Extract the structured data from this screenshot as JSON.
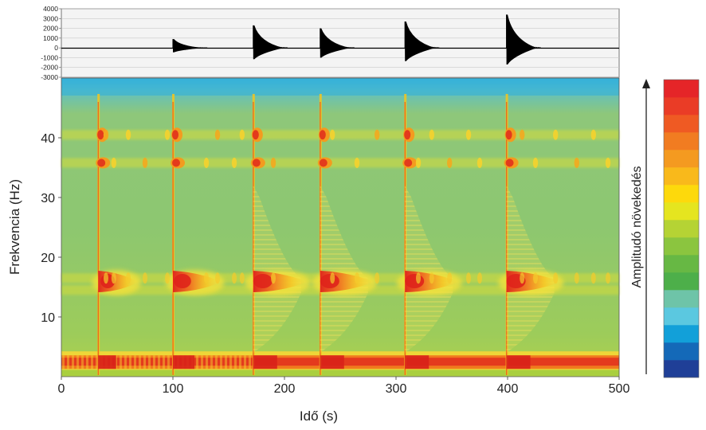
{
  "chart_data": [
    {
      "type": "line",
      "title": "",
      "xlabel": "",
      "ylabel": "",
      "xlim": [
        0,
        500
      ],
      "ylim": [
        -3000,
        4000
      ],
      "yticks": [
        4000,
        3000,
        2000,
        1000,
        0,
        -1000,
        -2000,
        -3000
      ],
      "grid": true,
      "series": [
        {
          "values": [
            {
              "x": 100,
              "y": 900
            },
            {
              "x": 172,
              "y": 2300
            },
            {
              "x": 232,
              "y": 2000
            },
            {
              "x": 308,
              "y": 2700
            },
            {
              "x": 399,
              "y": 3400
            }
          ]
        }
      ]
    },
    {
      "type": "heatmap",
      "title": "",
      "xlabel": "Idő (s)",
      "ylabel": "Frekvencia (Hz)",
      "xlim": [
        0,
        500
      ],
      "ylim": [
        0,
        50
      ],
      "xticks": [
        0,
        100,
        200,
        300,
        400,
        500
      ],
      "yticks": [
        10,
        20,
        30,
        40
      ],
      "frequency_bands_hz": [
        2.5,
        14.5,
        16.5,
        35.8,
        40.5
      ],
      "events_s": [
        33,
        100,
        172,
        232,
        308,
        399
      ],
      "colorbar": {
        "label": "Amplitudó növekedés",
        "colors": [
          "#1f3f97",
          "#1469b8",
          "#12a0d9",
          "#5bc8e0",
          "#6ec4a8",
          "#4daf4a",
          "#67b844",
          "#8bc53f",
          "#b5d334",
          "#e5e51f",
          "#fdd90c",
          "#f9b91b",
          "#f49a20",
          "#f17c21",
          "#ef5a23",
          "#ea3c26",
          "#e52528"
        ]
      }
    }
  ]
}
